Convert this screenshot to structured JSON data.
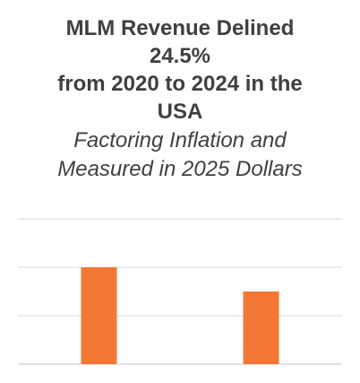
{
  "chart_data": {
    "type": "bar",
    "title_lines": [
      "MLM Revenue Delined",
      "24.5%",
      "from 2020 to 2024 in the",
      "USA"
    ],
    "subtitle_lines": [
      "Factoring Inflation and",
      "Measured in 2025 Dollars"
    ],
    "categories": [
      "",
      ""
    ],
    "values": [
      2.0,
      1.5
    ],
    "ylim": [
      0,
      3
    ],
    "grid": true,
    "legend": "none",
    "colors": {
      "bar": "#F47735",
      "grid": "#D9D9D9",
      "text": "#404040"
    }
  }
}
